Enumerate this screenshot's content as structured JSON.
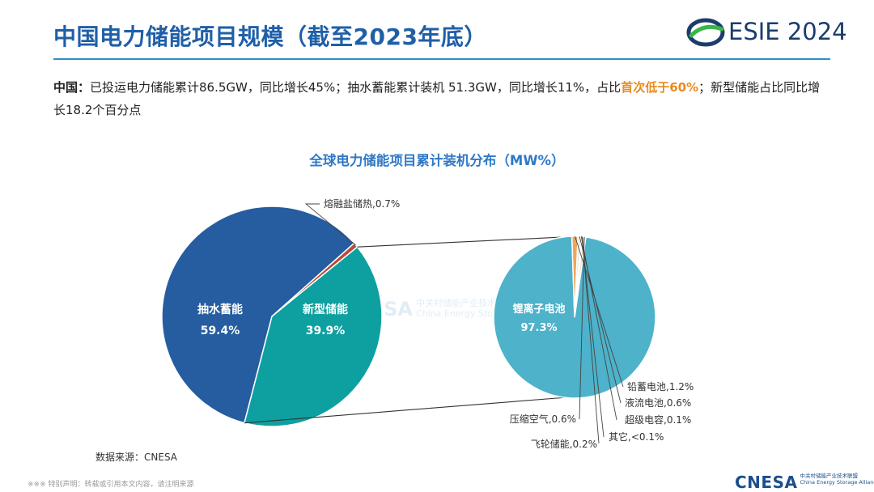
{
  "header": {
    "title": "中国电力储能项目规模（截至2023年底）",
    "logo_text": "ESIE 2024"
  },
  "summary": {
    "lead": "中国：",
    "text_part1": "已投运电力储能累计86.5GW，同比增长45%；抽水蓄能累计装机 51.3GW，同比增长11%，占比",
    "highlight": "首次低于60%",
    "text_part2": "；新型储能占比同比增长18.2个百分点"
  },
  "chart_data": {
    "type": "pie",
    "title": "全球电力储能项目累计装机分布（MW%）",
    "main_pie": [
      {
        "label": "抽水蓄能",
        "value": 59.4,
        "display": "59.4%",
        "color": "#255da0"
      },
      {
        "label": "熔融盐储热",
        "value": 0.7,
        "display": "熔融盐储热,0.7%",
        "color": "#b84a3c"
      },
      {
        "label": "新型储能",
        "value": 39.9,
        "display": "39.9%",
        "color": "#0ea0a0"
      }
    ],
    "sub_pie": [
      {
        "label": "锂离子电池",
        "value": 97.3,
        "display": "97.3%",
        "color": "#4db2ca"
      },
      {
        "label": "铅蓄电池",
        "value": 1.2,
        "display": "铅蓄电池,1.2%",
        "color": "#f0a55c"
      },
      {
        "label": "液流电池",
        "value": 0.6,
        "display": "液流电池,0.6%",
        "color": "#e2e2e2"
      },
      {
        "label": "超级电容",
        "value": 0.1,
        "display": "超级电容,0.1%",
        "color": "#f3c66a"
      },
      {
        "label": "其它",
        "value": 0.05,
        "display": "其它,<0.1%",
        "color": "#bdbdbd"
      },
      {
        "label": "飞轮储能",
        "value": 0.2,
        "display": "飞轮储能,0.2%",
        "color": "#8fb7d8"
      },
      {
        "label": "压缩空气",
        "value": 0.6,
        "display": "压缩空气,0.6%",
        "color": "#f6d9a6"
      }
    ]
  },
  "footer": {
    "source": "数据来源：CNESA",
    "disclaimer": "※※※ 特别声明：转载或引用本文内容，请注明来源",
    "cnesa_logo": "CNESA",
    "cnesa_cn": "中关村储能产业技术联盟",
    "cnesa_en": "China Energy Storage Alliance"
  },
  "watermark": {
    "logo": "CNESA",
    "cn": "中关村储能产业技术联盟",
    "en": "China Energy Storage Alliance"
  },
  "colors": {
    "title": "#1f5fa8",
    "accent": "#2c8fc8",
    "highlight": "#e88a1f"
  }
}
